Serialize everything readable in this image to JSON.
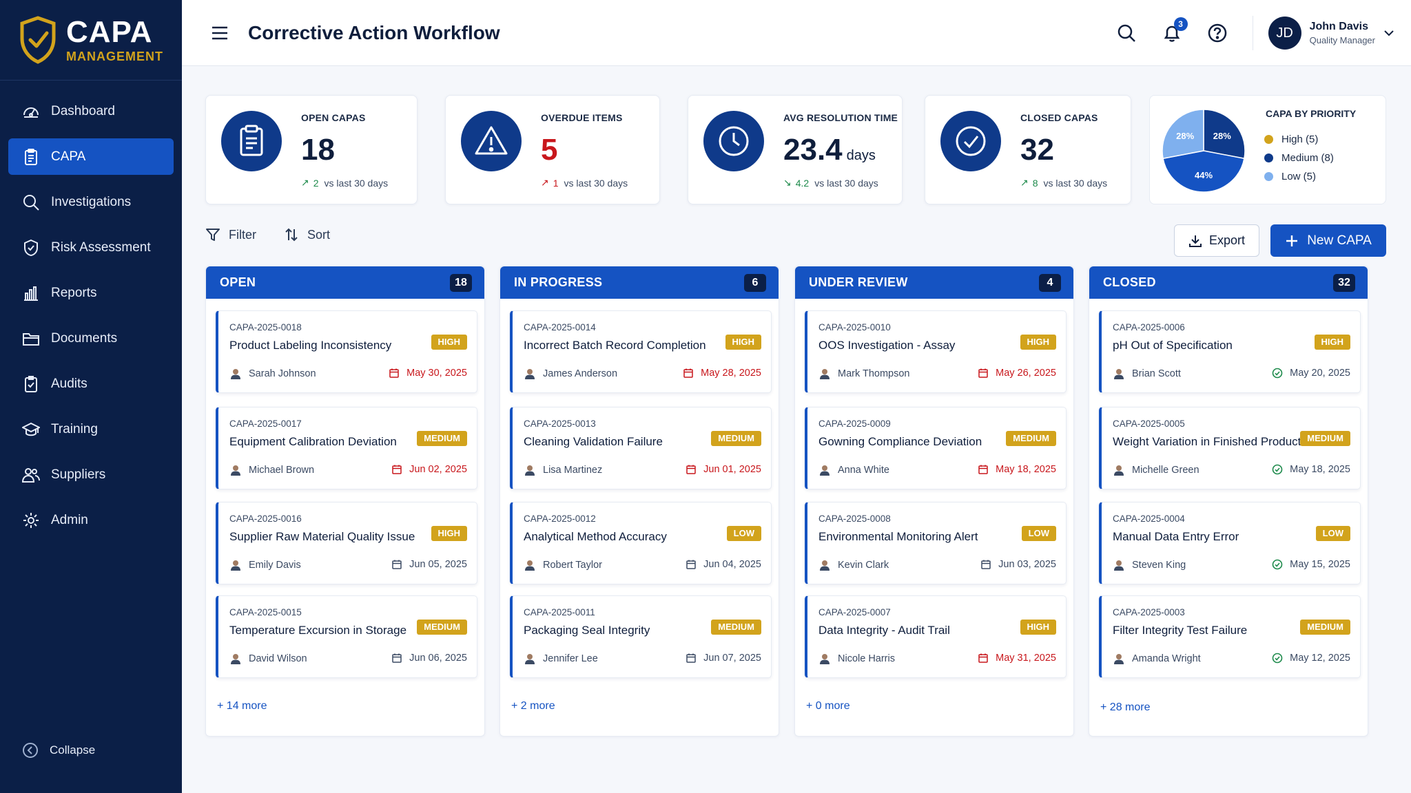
{
  "app": {
    "name_line1": "CAPA",
    "name_line2": "MANAGEMENT"
  },
  "sidebar": {
    "items": [
      {
        "label": "Dashboard",
        "icon": "dashboard-icon"
      },
      {
        "label": "CAPA",
        "icon": "clipboard-icon",
        "active": true
      },
      {
        "label": "Investigations",
        "icon": "search-icon"
      },
      {
        "label": "Risk Assessment",
        "icon": "shield-check-icon"
      },
      {
        "label": "Reports",
        "icon": "bar-chart-icon"
      },
      {
        "label": "Documents",
        "icon": "folder-icon"
      },
      {
        "label": "Audits",
        "icon": "checklist-icon"
      },
      {
        "label": "Training",
        "icon": "graduation-cap-icon"
      },
      {
        "label": "Suppliers",
        "icon": "users-icon"
      },
      {
        "label": "Admin",
        "icon": "gear-icon"
      }
    ],
    "collapse_label": "Collapse"
  },
  "header": {
    "title": "Corrective Action Workflow",
    "notification_count": "3",
    "user": {
      "initials": "JD",
      "name": "John Davis",
      "role": "Quality Manager"
    }
  },
  "stats": [
    {
      "label": "OPEN CAPAS",
      "value": "18",
      "unit": "",
      "trend_num": "2",
      "trend_text": "vs last 30 days",
      "trend_dir": "up-good"
    },
    {
      "label": "OVERDUE ITEMS",
      "value": "5",
      "unit": "",
      "trend_num": "1",
      "trend_text": "vs last 30 days",
      "trend_dir": "up-bad"
    },
    {
      "label": "AVG RESOLUTION TIME",
      "value": "23.4",
      "unit": "days",
      "trend_num": "4.2",
      "trend_text": "vs last 30 days",
      "trend_dir": "down-good"
    },
    {
      "label": "CLOSED CAPAS",
      "value": "32",
      "unit": "",
      "trend_num": "8",
      "trend_text": "vs last 30 days",
      "trend_dir": "up-good"
    }
  ],
  "priority_chart": {
    "title": "CAPA BY PRIORITY",
    "legend": [
      {
        "label": "High (5)",
        "color": "#d2a31c"
      },
      {
        "label": "Medium (8)",
        "color": "#0f3a8a"
      },
      {
        "label": "Low (5)",
        "color": "#7fb0ee"
      }
    ],
    "slices": [
      {
        "label": "28%",
        "value": 28,
        "color": "#0f3a8a"
      },
      {
        "label": "44%",
        "value": 44,
        "color": "#1553c2"
      },
      {
        "label": "28%",
        "value": 28,
        "color": "#7fb0ee"
      }
    ]
  },
  "toolbar": {
    "filter_label": "Filter",
    "sort_label": "Sort",
    "export_label": "Export",
    "new_label": "New CAPA"
  },
  "columns": [
    {
      "title": "OPEN",
      "count": "18",
      "more": "+ 14 more",
      "cards": [
        {
          "id": "CAPA-2025-0018",
          "title": "Product Labeling Inconsistency",
          "priority": "HIGH",
          "person": "Sarah Johnson",
          "date": "May 30, 2025",
          "date_style": "red"
        },
        {
          "id": "CAPA-2025-0017",
          "title": "Equipment Calibration Deviation",
          "priority": "MEDIUM",
          "person": "Michael Brown",
          "date": "Jun 02, 2025",
          "date_style": "red"
        },
        {
          "id": "CAPA-2025-0016",
          "title": "Supplier Raw Material Quality Issue",
          "priority": "HIGH",
          "person": "Emily Davis",
          "date": "Jun 05, 2025",
          "date_style": "normal"
        },
        {
          "id": "CAPA-2025-0015",
          "title": "Temperature Excursion in Storage",
          "priority": "MEDIUM",
          "person": "David Wilson",
          "date": "Jun 06, 2025",
          "date_style": "normal"
        }
      ]
    },
    {
      "title": "IN PROGRESS",
      "count": "6",
      "more": "+ 2 more",
      "cards": [
        {
          "id": "CAPA-2025-0014",
          "title": "Incorrect Batch Record Completion",
          "priority": "HIGH",
          "person": "James Anderson",
          "date": "May 28, 2025",
          "date_style": "red"
        },
        {
          "id": "CAPA-2025-0013",
          "title": "Cleaning Validation Failure",
          "priority": "MEDIUM",
          "person": "Lisa Martinez",
          "date": "Jun 01, 2025",
          "date_style": "red"
        },
        {
          "id": "CAPA-2025-0012",
          "title": "Analytical Method Accuracy",
          "priority": "LOW",
          "person": "Robert Taylor",
          "date": "Jun 04, 2025",
          "date_style": "normal"
        },
        {
          "id": "CAPA-2025-0011",
          "title": "Packaging Seal Integrity",
          "priority": "MEDIUM",
          "person": "Jennifer Lee",
          "date": "Jun 07, 2025",
          "date_style": "normal"
        }
      ]
    },
    {
      "title": "UNDER REVIEW",
      "count": "4",
      "more": "+ 0 more",
      "cards": [
        {
          "id": "CAPA-2025-0010",
          "title": "OOS Investigation - Assay",
          "priority": "HIGH",
          "person": "Mark Thompson",
          "date": "May 26, 2025",
          "date_style": "red"
        },
        {
          "id": "CAPA-2025-0009",
          "title": "Gowning Compliance Deviation",
          "priority": "MEDIUM",
          "person": "Anna White",
          "date": "May 18, 2025",
          "date_style": "red"
        },
        {
          "id": "CAPA-2025-0008",
          "title": "Environmental Monitoring Alert",
          "priority": "LOW",
          "person": "Kevin Clark",
          "date": "Jun 03, 2025",
          "date_style": "normal"
        },
        {
          "id": "CAPA-2025-0007",
          "title": "Data Integrity - Audit Trail",
          "priority": "HIGH",
          "person": "Nicole Harris",
          "date": "May 31, 2025",
          "date_style": "red"
        }
      ]
    },
    {
      "title": "CLOSED",
      "count": "32",
      "more": "+ 28 more",
      "cards": [
        {
          "id": "CAPA-2025-0006",
          "title": "pH Out of Specification",
          "priority": "HIGH",
          "person": "Brian Scott",
          "date": "May 20, 2025",
          "date_style": "green"
        },
        {
          "id": "CAPA-2025-0005",
          "title": "Weight Variation in Finished Product",
          "priority": "MEDIUM",
          "person": "Michelle Green",
          "date": "May 18, 2025",
          "date_style": "green"
        },
        {
          "id": "CAPA-2025-0004",
          "title": "Manual Data Entry Error",
          "priority": "LOW",
          "person": "Steven King",
          "date": "May 15, 2025",
          "date_style": "green"
        },
        {
          "id": "CAPA-2025-0003",
          "title": "Filter Integrity Test Failure",
          "priority": "MEDIUM",
          "person": "Amanda Wright",
          "date": "May 12, 2025",
          "date_style": "green"
        }
      ]
    }
  ]
}
